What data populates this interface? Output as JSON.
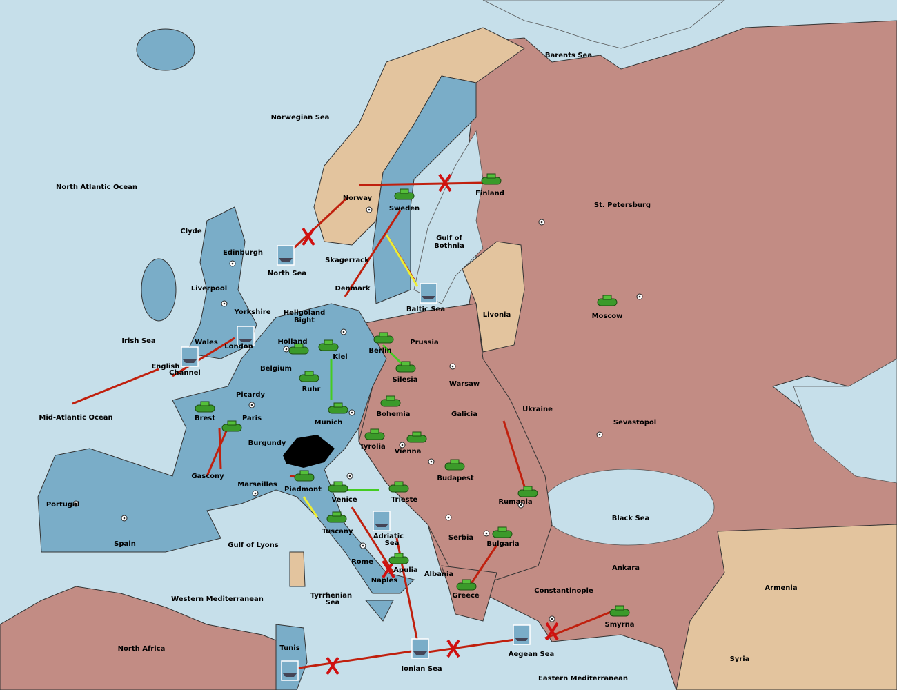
{
  "labels": [
    "Barents Sea",
    "Norwegian Sea",
    "North Atlantic Ocean",
    "Norway",
    "Sweden",
    "Finland",
    "St. Petersburg",
    "Clyde",
    "Edinburgh",
    "North Sea",
    "Skagerrack",
    "Gulf of",
    "Bothnia",
    "Liverpool",
    "Denmark",
    "Baltic Sea",
    "Livonia",
    "Moscow",
    "Yorkshire",
    "Heligoland",
    "Bight",
    "Irish Sea",
    "Wales",
    "London",
    "Holland",
    "Prussia",
    "Kiel",
    "Berlin",
    "Belgium",
    "English",
    "Channel",
    "Silesia",
    "Warsaw",
    "Ruhr",
    "Picardy",
    "Mid-Atlantic Ocean",
    "Brest",
    "Paris",
    "Munich",
    "Bohemia",
    "Galicia",
    "Ukraine",
    "Sevastopol",
    "Burgundy",
    "Tyrolia",
    "Vienna",
    "Budapest",
    "Gascony",
    "Marseilles",
    "Piedmont",
    "Venice",
    "Trieste",
    "Rumania",
    "Portugal",
    "Black Sea",
    "Tuscany",
    "Adriatic",
    "Sea",
    "Serbia",
    "Bulgaria",
    "Spain",
    "Gulf of Lyons",
    "Rome",
    "Apulia",
    "Ankara",
    "Albania",
    "Naples",
    "Armenia",
    "Constantinople",
    "Greece",
    "Western Mediterranean",
    "Tyrrhenian",
    "Sea",
    "Smyrna",
    "North Africa",
    "Tunis",
    "Aegean Sea",
    "Syria",
    "Ionian Sea",
    "Eastern Mediterranean"
  ]
}
